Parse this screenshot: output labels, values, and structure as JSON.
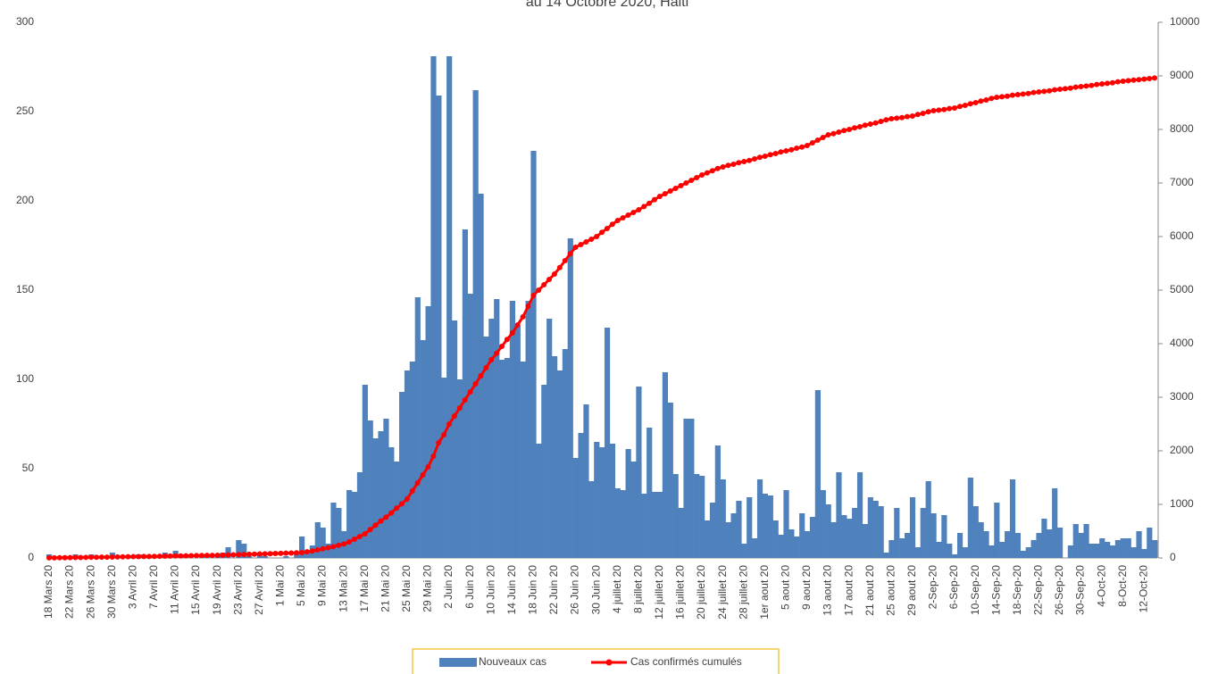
{
  "chart_data": {
    "type": "bar",
    "title": "au 14 Octobre 2020, Haiti",
    "categories": [
      "18 Mars 20",
      null,
      null,
      null,
      "22 Mars 20",
      null,
      null,
      null,
      "26 Mars 20",
      null,
      null,
      null,
      "30 Mars 20",
      null,
      null,
      null,
      "3 Avril 20",
      null,
      null,
      null,
      "7 Avril 20",
      null,
      null,
      null,
      "11 Avril 20",
      null,
      null,
      null,
      "15 Avril 20",
      null,
      null,
      null,
      "19 Avril 20",
      null,
      null,
      null,
      "23 Avril 20",
      null,
      null,
      null,
      "27 Avril 20",
      null,
      null,
      null,
      "1 Mai 20",
      null,
      null,
      null,
      "5 Mai 20",
      null,
      null,
      null,
      "9 Mai 20",
      null,
      null,
      null,
      "13 Mai 20",
      null,
      null,
      null,
      "17 Mai 20",
      null,
      null,
      null,
      "21 Mai 20",
      null,
      null,
      null,
      "25 Mai 20",
      null,
      null,
      null,
      "29 Mai 20",
      null,
      null,
      null,
      "2 Juin 20",
      null,
      null,
      null,
      "6 Juin 20",
      null,
      null,
      null,
      "10 Juin 20",
      null,
      null,
      null,
      "14 Juin 20",
      null,
      null,
      null,
      "18 Juin 20",
      null,
      null,
      null,
      "22 Juin 20",
      null,
      null,
      null,
      "26 Juin 20",
      null,
      null,
      null,
      "30 Juin 20",
      null,
      null,
      null,
      "4 juillet 20",
      null,
      null,
      null,
      "8 juillet 20",
      null,
      null,
      null,
      "12 juillet 20",
      null,
      null,
      null,
      "16 juillet 20",
      null,
      null,
      null,
      "20 juillet 20",
      null,
      null,
      null,
      "24 juillet 20",
      null,
      null,
      null,
      "28 juillet 20",
      null,
      null,
      null,
      "1er aout 20",
      null,
      null,
      null,
      "5 aout 20",
      null,
      null,
      null,
      "9 aout 20",
      null,
      null,
      null,
      "13 aout 20",
      null,
      null,
      null,
      "17 aout 20",
      null,
      null,
      null,
      "21 aout 20",
      null,
      null,
      null,
      "25 aout 20",
      null,
      null,
      null,
      "29 aout 20",
      null,
      null,
      null,
      "2-Sep-20",
      null,
      null,
      null,
      "6-Sep-20",
      null,
      null,
      null,
      "10-Sep-20",
      null,
      null,
      null,
      "14-Sep-20",
      null,
      null,
      null,
      "18-Sep-20",
      null,
      null,
      null,
      "22-Sep-20",
      null,
      null,
      null,
      "26-Sep-20",
      null,
      null,
      null,
      "30-Sep-20",
      null,
      null,
      null,
      "4-Oct-20",
      null,
      null,
      null,
      "8-Oct-20",
      null,
      null,
      null,
      "12-Oct-20",
      null,
      null
    ],
    "series": [
      {
        "name": "Nouveaux cas",
        "type": "bar",
        "axis": "y",
        "color": "#4f81bd",
        "values": [
          2,
          0,
          0,
          1,
          1,
          2,
          0,
          1,
          2,
          0,
          0,
          1,
          3,
          0,
          0,
          1,
          0,
          2,
          0,
          1,
          0,
          1,
          3,
          0,
          4,
          2,
          1,
          0,
          0,
          1,
          2,
          0,
          1,
          3,
          6,
          0,
          10,
          8,
          1,
          0,
          2,
          1,
          0,
          0,
          0,
          1,
          0,
          2,
          12,
          3,
          7,
          20,
          17,
          8,
          31,
          28,
          15,
          38,
          37,
          48,
          97,
          77,
          67,
          71,
          78,
          62,
          54,
          93,
          105,
          110,
          146,
          122,
          141,
          281,
          259,
          101,
          281,
          133,
          100,
          184,
          148,
          262,
          204,
          124,
          134,
          145,
          111,
          112,
          144,
          130,
          110,
          144,
          228,
          64,
          97,
          134,
          113,
          105,
          117,
          179,
          56,
          70,
          86,
          43,
          65,
          62,
          129,
          64,
          39,
          38,
          61,
          54,
          96,
          36,
          73,
          37,
          37,
          104,
          87,
          47,
          28,
          78,
          78,
          47,
          46,
          21,
          31,
          63,
          44,
          20,
          25,
          32,
          8,
          34,
          11,
          44,
          36,
          35,
          21,
          13,
          38,
          16,
          12,
          25,
          15,
          23,
          94,
          38,
          30,
          20,
          48,
          24,
          22,
          28,
          48,
          19,
          34,
          32,
          29,
          3,
          10,
          28,
          11,
          14,
          34,
          6,
          28,
          43,
          25,
          9,
          24,
          8,
          2,
          14,
          6,
          45,
          29,
          20,
          15,
          7,
          31,
          9,
          15,
          44,
          14,
          4,
          6,
          10,
          14,
          22,
          16,
          39,
          17,
          0,
          7,
          19,
          14,
          19,
          8,
          8,
          11,
          9,
          7,
          10,
          11,
          11,
          6,
          15,
          5,
          17,
          10
        ]
      },
      {
        "name": "Cas confirmés cumulés",
        "type": "line",
        "axis": "y2",
        "color": "#ff0000",
        "values": [
          2,
          3,
          4,
          5,
          7,
          8,
          9,
          10,
          12,
          13,
          14,
          15,
          16,
          18,
          20,
          22,
          24,
          25,
          27,
          28,
          30,
          32,
          33,
          35,
          37,
          38,
          40,
          42,
          43,
          45,
          47,
          48,
          50,
          53,
          56,
          59,
          62,
          65,
          68,
          71,
          74,
          77,
          80,
          83,
          85,
          89,
          92,
          96,
          100,
          115,
          130,
          150,
          170,
          190,
          210,
          235,
          260,
          300,
          350,
          400,
          450,
          530,
          610,
          690,
          760,
          840,
          930,
          1010,
          1100,
          1250,
          1400,
          1550,
          1700,
          1900,
          2150,
          2300,
          2500,
          2650,
          2800,
          2950,
          3100,
          3250,
          3400,
          3550,
          3700,
          3820,
          3950,
          4080,
          4200,
          4350,
          4500,
          4700,
          4900,
          5000,
          5100,
          5200,
          5300,
          5420,
          5550,
          5680,
          5800,
          5850,
          5900,
          5950,
          6000,
          6080,
          6150,
          6230,
          6300,
          6350,
          6400,
          6450,
          6500,
          6560,
          6620,
          6690,
          6750,
          6800,
          6850,
          6900,
          6950,
          7000,
          7050,
          7100,
          7150,
          7190,
          7230,
          7270,
          7300,
          7330,
          7350,
          7380,
          7400,
          7420,
          7450,
          7480,
          7500,
          7530,
          7550,
          7580,
          7600,
          7620,
          7650,
          7670,
          7700,
          7750,
          7800,
          7850,
          7900,
          7920,
          7950,
          7980,
          8000,
          8030,
          8050,
          8080,
          8100,
          8120,
          8150,
          8180,
          8200,
          8210,
          8220,
          8240,
          8250,
          8280,
          8300,
          8330,
          8350,
          8360,
          8370,
          8390,
          8400,
          8430,
          8450,
          8480,
          8500,
          8530,
          8550,
          8580,
          8600,
          8610,
          8620,
          8640,
          8650,
          8660,
          8670,
          8690,
          8700,
          8710,
          8720,
          8740,
          8750,
          8760,
          8770,
          8790,
          8800,
          8810,
          8820,
          8840,
          8850,
          8860,
          8870,
          8890,
          8900,
          8910,
          8920,
          8930,
          8940,
          8950,
          8960
        ]
      }
    ],
    "ylim": [
      0,
      300
    ],
    "yticks": [
      0,
      50,
      100,
      150,
      200,
      250,
      300
    ],
    "y2lim": [
      0,
      10000
    ],
    "y2ticks": [
      0,
      1000,
      2000,
      3000,
      4000,
      5000,
      6000,
      7000,
      8000,
      9000,
      10000
    ],
    "grid": false,
    "legend": "bottom"
  }
}
